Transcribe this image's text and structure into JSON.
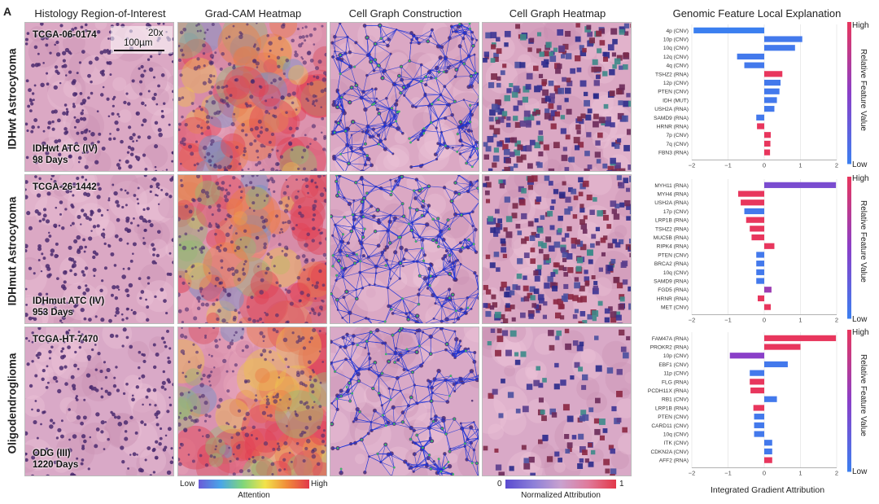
{
  "panel_letter": "A",
  "columns": [
    "Histology Region-of-Interest",
    "Grad-CAM Heatmap",
    "Cell Graph Construction",
    "Cell Graph Heatmap",
    "Genomic Feature Local Explanation"
  ],
  "rows": [
    {
      "label": "IDHwt Astrocytoma",
      "case_id": "TCGA-06-0174",
      "diagnosis": "IDHwt ATC (IV)",
      "survival": "98 Days"
    },
    {
      "label": "IDHmut Astrocytoma",
      "case_id": "TCGA-26-1442",
      "diagnosis": "IDHmut ATC (IV)",
      "survival": "953 Days"
    },
    {
      "label": "Oligodendroglioma",
      "case_id": "TCGA-HT-7470",
      "diagnosis": "ODG (III)",
      "survival": "1220 Days"
    }
  ],
  "scale": {
    "magnification": "20x",
    "bar": "100µm"
  },
  "gradcam_colorbar": {
    "low": "Low",
    "high": "High",
    "label": "Attention"
  },
  "graph_colorbar": {
    "low": "0",
    "high": "1",
    "label": "Normalized Attribution"
  },
  "feature_colorbar": {
    "high": "High",
    "low": "Low",
    "label": "Relative Feature Value"
  },
  "x_axis_label": "Integrated Gradient Attribution",
  "colors": {
    "low": "#3b7ff0",
    "mid": "#8a3fc8",
    "high": "#e8365d",
    "tissue": "#dba8c4",
    "nuclei": "#4a2a6e",
    "edges": "#1f35d8"
  },
  "chart_data": [
    {
      "type": "bar",
      "orientation": "horizontal",
      "xlim": [
        -2,
        2
      ],
      "xticks": [
        "−2",
        "−1",
        "0",
        "1",
        "2"
      ],
      "categories": [
        "4p (CNV)",
        "10p (CNV)",
        "10q (CNV)",
        "12q (CNV)",
        "4q (CNV)",
        "TSHZ2 (RNA)",
        "12p (CNV)",
        "PTEN (CNV)",
        "IDH (MUT)",
        "USH2A (RNA)",
        "SAMD9 (RNA)",
        "HRNR (RNA)",
        "7p (CNV)",
        "7q (CNV)",
        "FBN3 (RNA)"
      ],
      "values": [
        -1.95,
        1.05,
        0.85,
        -0.75,
        -0.55,
        0.5,
        0.45,
        0.42,
        0.35,
        0.28,
        -0.22,
        -0.2,
        0.18,
        0.17,
        0.16
      ],
      "feature_values": [
        0.0,
        0.05,
        0.05,
        0.05,
        0.05,
        1.0,
        0.05,
        0.05,
        0.05,
        0.05,
        0.05,
        1.0,
        1.0,
        1.0,
        1.0
      ]
    },
    {
      "type": "bar",
      "orientation": "horizontal",
      "xlim": [
        -2,
        2
      ],
      "xticks": [
        "−2",
        "−1",
        "0",
        "1",
        "2"
      ],
      "categories": [
        "MYH11 (RNA)",
        "MYH4 (RNA)",
        "USH2A (RNA)",
        "17p (CNV)",
        "LRP1B (RNA)",
        "TSHZ2 (RNA)",
        "MUC5B (RNA)",
        "RIPK4 (RNA)",
        "PTEN (CNV)",
        "BRCA2 (RNA)",
        "10q (CNV)",
        "SAMD9 (RNA)",
        "FGD5 (RNA)",
        "HRNR (RNA)",
        "MET (CNV)"
      ],
      "values": [
        1.98,
        -0.72,
        -0.65,
        -0.55,
        -0.5,
        -0.4,
        -0.35,
        0.28,
        -0.22,
        -0.22,
        -0.22,
        -0.22,
        0.2,
        -0.18,
        0.18
      ],
      "feature_values": [
        0.4,
        1.0,
        1.0,
        0.05,
        1.0,
        1.0,
        1.0,
        1.0,
        0.05,
        0.05,
        0.05,
        0.05,
        0.6,
        1.0,
        1.0
      ]
    },
    {
      "type": "bar",
      "orientation": "horizontal",
      "xlim": [
        -2,
        2
      ],
      "xticks": [
        "−2",
        "−1",
        "0",
        "1",
        "2"
      ],
      "categories": [
        "FAM47A (RNA)",
        "PROKR2 (RNA)",
        "10p (CNV)",
        "EBF1 (CNV)",
        "11p (CNV)",
        "FLG (RNA)",
        "PCDH11X (RNA)",
        "RB1 (CNV)",
        "LRP1B (RNA)",
        "PTEN (CNV)",
        "CARD11 (CNV)",
        "10q (CNV)",
        "ITK (CNV)",
        "CDKN2A (CNV)",
        "AFF2 (RNA)"
      ],
      "values": [
        1.98,
        1.0,
        -0.95,
        0.65,
        -0.4,
        -0.4,
        -0.38,
        0.35,
        -0.3,
        -0.28,
        -0.28,
        -0.28,
        0.22,
        0.22,
        0.22
      ],
      "feature_values": [
        1.0,
        1.0,
        0.5,
        0.05,
        0.05,
        1.0,
        1.0,
        0.05,
        1.0,
        0.05,
        0.05,
        0.05,
        0.05,
        0.05,
        1.0
      ]
    }
  ]
}
